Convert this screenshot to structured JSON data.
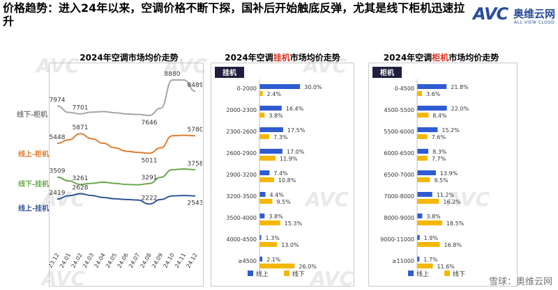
{
  "headline": "价格趋势：进入24年以来，空调价格不断下探，国补后开始触底反弹，尤其是线下柜机迅速拉升",
  "logo": {
    "avc": "AVC",
    "cn": "奥维云网",
    "en": "ALL VIEW CLOUD"
  },
  "watermark": "AVC",
  "credit": "雪球：奥维云网",
  "colors": {
    "offline_cabinet": "#a6a6a6",
    "online_cabinet": "#e07b2f",
    "offline_wall": "#6aa84f",
    "online_wall": "#2f5597",
    "online_bar": "#2f5bd3",
    "offline_bar": "#f5b700"
  },
  "panel1": {
    "title": "2024年空调市场均价走势",
    "labels": [
      "线下-柜机",
      "线上-柜机",
      "线下-挂机",
      "线上-挂机"
    ]
  },
  "panel2": {
    "title_pre": "2024年空调",
    "title_hl": "挂机",
    "title_post": "市场均价走势",
    "tag": "挂机"
  },
  "panel3": {
    "title_pre": "2024年空调",
    "title_hl": "柜机",
    "title_post": "市场均价走势",
    "tag": "柜机"
  },
  "legend": {
    "online": "线上",
    "offline": "线下"
  },
  "chart_data": [
    {
      "type": "line",
      "title": "2024年空调市场均价走势",
      "x": [
        "23.12",
        "24.01",
        "24.02",
        "24.03",
        "24.04",
        "24.05",
        "24.06",
        "24.07",
        "24.08",
        "24.09",
        "24.10",
        "24.11",
        "24.12"
      ],
      "series": [
        {
          "name": "线下-柜机",
          "values": [
            7974,
            7750,
            7701,
            7760,
            7780,
            7740,
            7700,
            7680,
            7646,
            7900,
            8880,
            8880,
            8489
          ],
          "labels": {
            "0": 7974,
            "2": 7701,
            "8": 7646,
            "10": 8880,
            "12": 8489
          }
        },
        {
          "name": "线上-柜机",
          "values": [
            5448,
            5600,
            5871,
            5650,
            5450,
            5250,
            5100,
            5050,
            5011,
            5250,
            5780,
            5800,
            5780
          ],
          "labels": {
            "0": 5448,
            "2": 5871,
            "8": 5011,
            "12": 5780
          }
        },
        {
          "name": "线下-挂机",
          "values": [
            3509,
            3380,
            3261,
            3300,
            3340,
            3300,
            3260,
            3250,
            3291,
            3500,
            3758,
            3780,
            3758
          ],
          "labels": {
            "0": 3509,
            "2": 3261,
            "8": 3291,
            "12": 3758
          }
        },
        {
          "name": "线上-挂机",
          "values": [
            2419,
            2550,
            2628,
            2560,
            2480,
            2430,
            2400,
            2380,
            2222,
            2400,
            2543,
            2560,
            2543
          ],
          "labels": {
            "0": 2419,
            "2": 2628,
            "8": 2222,
            "12": 2543
          }
        }
      ]
    },
    {
      "type": "bar",
      "title": "2024年空调挂机市场均价走势",
      "categories": [
        "0-2000",
        "2000-2300",
        "2300-2600",
        "2600-2900",
        "2900-3200",
        "3200-3500",
        "3500-4000",
        "4000-4500",
        "≥4500"
      ],
      "series": [
        {
          "name": "线上",
          "values": [
            30.0,
            16.4,
            17.5,
            17.0,
            7.4,
            4.4,
            3.8,
            1.3,
            2.1
          ]
        },
        {
          "name": "线下",
          "values": [
            2.4,
            3.8,
            7.3,
            11.9,
            10.8,
            9.5,
            15.3,
            13.0,
            26.0
          ]
        }
      ],
      "unit": "%",
      "xlim": [
        0,
        32
      ]
    },
    {
      "type": "bar",
      "title": "2024年空调柜机市场均价走势",
      "categories": [
        "0-4500",
        "4500-5500",
        "5500-6000",
        "6000-6500",
        "6500-7000",
        "7000-8000",
        "8000-9000",
        "9000-11000",
        "≥11000"
      ],
      "series": [
        {
          "name": "线上",
          "values": [
            21.8,
            22.0,
            15.2,
            8.3,
            13.9,
            11.2,
            3.8,
            1.9,
            1.7
          ]
        },
        {
          "name": "线下",
          "values": [
            3.6,
            8.4,
            7.6,
            7.7,
            9.5,
            16.2,
            18.5,
            16.8,
            11.6
          ]
        }
      ],
      "unit": "%",
      "xlim": [
        0,
        32
      ]
    }
  ]
}
